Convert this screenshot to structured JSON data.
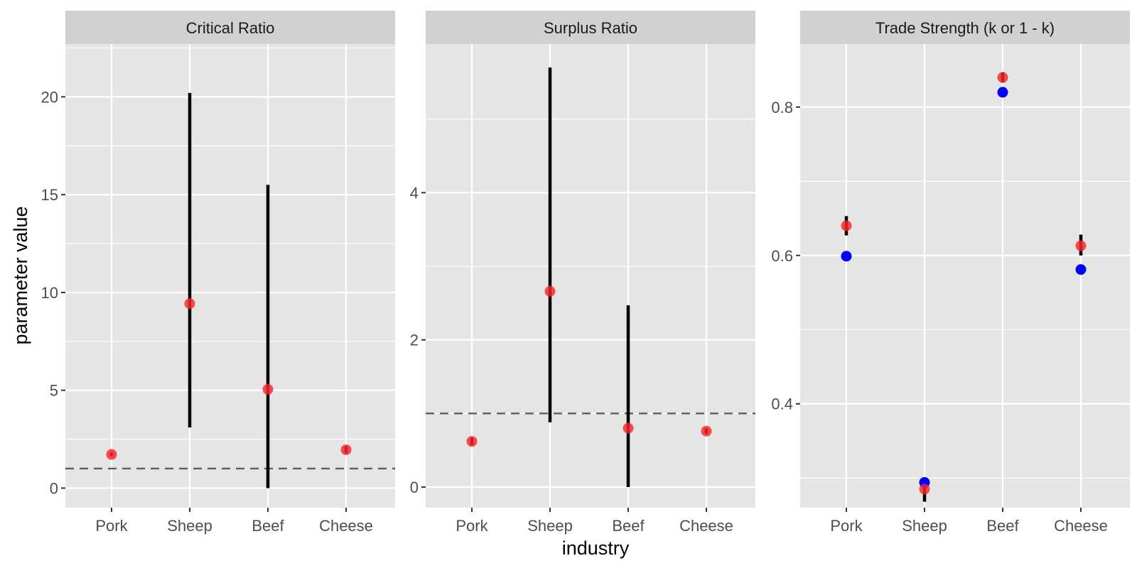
{
  "chart_data": {
    "type": "scatter",
    "xlabel": "industry",
    "ylabel": "parameter value",
    "categories": [
      "Pork",
      "Sheep",
      "Beef",
      "Cheese"
    ],
    "colors": {
      "estimate": "#f8262a",
      "reference": "#0000ff",
      "interval": "#000000",
      "hline": "#5e5e5e",
      "panel_bg": "#e5e5e5",
      "strip_bg": "#d1d1d1",
      "grid": "#ffffff"
    },
    "panels": [
      {
        "title": "Critical Ratio",
        "ylim": [
          -1,
          22.7
        ],
        "yticks": [
          0,
          5,
          10,
          15,
          20
        ],
        "hline": 1,
        "estimates": [
          1.72,
          9.43,
          5.05,
          1.96
        ],
        "intervals": [
          [
            1.62,
            1.82
          ],
          [
            3.1,
            20.2
          ],
          [
            0,
            15.5
          ],
          [
            1.78,
            2.14
          ]
        ],
        "reference": []
      },
      {
        "title": "Surplus Ratio",
        "ylim": [
          -0.28,
          6.02
        ],
        "yticks": [
          0,
          2,
          4
        ],
        "hline": 1,
        "estimates": [
          0.62,
          2.66,
          0.8,
          0.76
        ],
        "intervals": [
          [
            0.57,
            0.67
          ],
          [
            0.88,
            5.7
          ],
          [
            0,
            2.47
          ],
          [
            0.72,
            0.8
          ]
        ],
        "reference": []
      },
      {
        "title": "Trade Strength (k or 1 - k)",
        "ylim": [
          0.26,
          0.885
        ],
        "yticks": [
          0.4,
          0.6,
          0.8
        ],
        "hline": null,
        "estimates": [
          0.64,
          0.285,
          0.84,
          0.613
        ],
        "intervals": [
          [
            0.627,
            0.653
          ],
          [
            0.268,
            0.3
          ],
          [
            0.833,
            0.847
          ],
          [
            0.6,
            0.628
          ]
        ],
        "reference": [
          0.599,
          0.294,
          0.82,
          0.581
        ]
      }
    ]
  }
}
